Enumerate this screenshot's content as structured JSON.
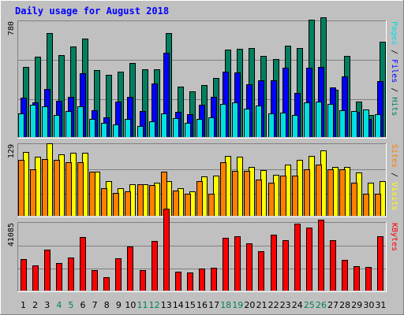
{
  "chart_data": {
    "type": "bar",
    "title": "Daily usage for August 2018",
    "days": [
      "1",
      "2",
      "3",
      "4",
      "5",
      "6",
      "7",
      "8",
      "9",
      "10",
      "11",
      "12",
      "13",
      "14",
      "15",
      "16",
      "17",
      "18",
      "19",
      "20",
      "21",
      "22",
      "23",
      "24",
      "25",
      "26",
      "27",
      "28",
      "29",
      "30",
      "31"
    ],
    "weekend_days": [
      "4",
      "5",
      "11",
      "12",
      "18",
      "19",
      "25",
      "26"
    ],
    "panels": [
      {
        "name": "hits-panel",
        "ymax": 780,
        "ymax_label": "780",
        "right_label": [
          "Pages",
          " / ",
          "Files",
          " / ",
          "Hits"
        ],
        "right_label_colors": [
          "#00e0e0",
          "#000000",
          "#0000ff",
          "#000000",
          "#008060"
        ],
        "series": [
          {
            "name": "Hits",
            "color": "#008060",
            "values": [
              470,
              540,
              700,
              550,
              610,
              665,
              450,
              420,
              440,
              500,
              455,
              455,
              700,
              340,
              310,
              350,
              400,
              590,
              595,
              600,
              545,
              525,
              615,
              600,
              790,
              805,
              320,
              545,
              240,
              150,
              640
            ]
          },
          {
            "name": "Files",
            "color": "#0000ff",
            "values": [
              265,
              235,
              325,
              245,
              270,
              430,
              180,
              135,
              240,
              270,
              175,
              360,
              570,
              170,
              155,
              220,
              270,
              440,
              435,
              355,
              380,
              380,
              465,
              295,
              465,
              470,
              335,
              410,
              170,
              120,
              375
            ]
          },
          {
            "name": "Pages",
            "color": "#00e0e0",
            "values": [
              160,
              215,
              205,
              150,
              175,
              205,
              120,
              95,
              85,
              120,
              75,
              105,
              160,
              125,
              95,
              120,
              135,
              225,
              235,
              190,
              210,
              160,
              165,
              150,
              235,
              240,
              225,
              180,
              175,
              185,
              155
            ]
          }
        ]
      },
      {
        "name": "visits-panel",
        "ymax": 129,
        "ymax_label": "129",
        "right_label": [
          "Sites",
          " / ",
          "Visits"
        ],
        "right_label_colors": [
          "#ff8000",
          "#000000",
          "#ffff00"
        ],
        "series": [
          {
            "name": "Visits",
            "color": "#ffff00",
            "values": [
              115,
              107,
              130,
              111,
              113,
              113,
              79,
              63,
              49,
              57,
              56,
              60,
              63,
              50,
              44,
              71,
              73,
              108,
              106,
              88,
              82,
              74,
              92,
              101,
              108,
              117,
              88,
              88,
              78,
              59,
              63
            ]
          },
          {
            "name": "Sites",
            "color": "#ff8000",
            "values": [
              100,
              84,
              102,
              100,
              97,
              97,
              80,
              50,
              41,
              44,
              56,
              55,
              80,
              45,
              39,
              63,
              40,
              97,
              81,
              81,
              65,
              60,
              73,
              73,
              84,
              92,
              84,
              84,
              60,
              40,
              40
            ]
          }
        ]
      },
      {
        "name": "kbytes-panel",
        "ymax": 41085,
        "ymax_label": "41085",
        "right_label": [
          "KBytes"
        ],
        "right_label_colors": [
          "#ff0000"
        ],
        "series": [
          {
            "name": "KBytes",
            "color": "#ff0000",
            "values": [
              19300,
              15200,
              24800,
              16700,
              20300,
              32500,
              12200,
              8200,
              19700,
              26800,
              12300,
              30000,
              49500,
              11400,
              10800,
              13400,
              13700,
              32100,
              33000,
              28800,
              24100,
              34000,
              30800,
              40500,
              38000,
              43000,
              30600,
              18400,
              14700,
              14200,
              32800
            ]
          }
        ]
      }
    ]
  }
}
